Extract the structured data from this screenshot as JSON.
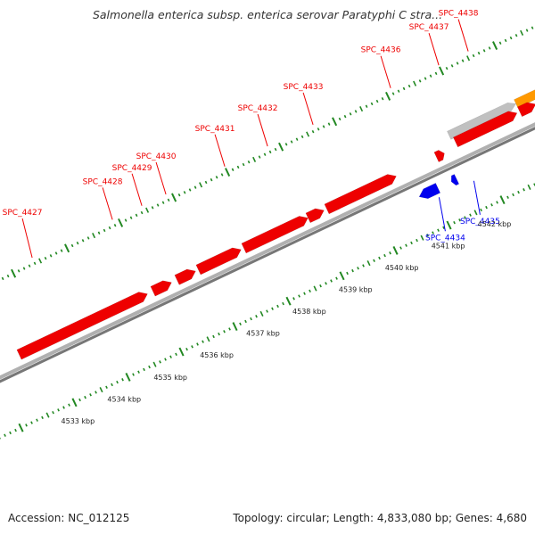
{
  "title": "Salmonella enterica subsp. enterica serovar Paratyphi C stra...",
  "footer": {
    "accession": "Accession: NC_012125",
    "summary": "Topology: circular; Length: 4,833,080 bp; Genes: 4,680"
  },
  "colors": {
    "forward_gene": "#ee0000",
    "reverse_gene": "#0000ee",
    "backbone": "#888888",
    "tick": "#228822",
    "grey_feature": "#c0c0c0",
    "orange_feature": "#ff9900"
  },
  "genes": [
    {
      "name": "SPC_4427",
      "strand": "+",
      "t_start": 0.05,
      "t_end": 0.29,
      "label_t": 0.14
    },
    {
      "name": "SPC_4428",
      "strand": "+",
      "t_start": 0.3,
      "t_end": 0.335,
      "label_t": 0.29
    },
    {
      "name": "SPC_4429",
      "strand": "+",
      "t_start": 0.345,
      "t_end": 0.38,
      "label_t": 0.345
    },
    {
      "name": "SPC_4430",
      "strand": "+",
      "t_start": 0.385,
      "t_end": 0.465,
      "label_t": 0.39
    },
    {
      "name": "SPC_4431",
      "strand": "+",
      "t_start": 0.47,
      "t_end": 0.59,
      "label_t": 0.5
    },
    {
      "name": "SPC_4432",
      "strand": "+",
      "t_start": 0.59,
      "t_end": 0.62,
      "label_t": 0.58
    },
    {
      "name": "SPC_4433",
      "strand": "+",
      "t_start": 0.625,
      "t_end": 0.755,
      "label_t": 0.665
    },
    {
      "name": "SPC_4436",
      "strand": "+",
      "t_start": 0.83,
      "t_end": 0.845,
      "label_t": 0.81
    },
    {
      "name": "SPC_4437",
      "strand": "+",
      "t_start": 0.87,
      "t_end": 0.985,
      "label_t": 0.9
    },
    {
      "name": "SPC_4438",
      "strand": "+",
      "t_start": 0.99,
      "t_end": 1.02,
      "label_t": 0.955
    },
    {
      "name": "SPC_4434",
      "strand": "-",
      "t_start": 0.775,
      "t_end": 0.81,
      "label_t": 0.815
    },
    {
      "name": "SPC_4435",
      "strand": "-",
      "t_start": 0.835,
      "t_end": 0.845,
      "label_t": 0.88
    }
  ],
  "scale": {
    "unit": "kbp",
    "labels": [
      "4533 kbp",
      "4534 kbp",
      "4535 kbp",
      "4536 kbp",
      "4537 kbp",
      "4538 kbp",
      "4539 kbp",
      "4540 kbp",
      "4541 kbp",
      "4542 kbp"
    ]
  }
}
